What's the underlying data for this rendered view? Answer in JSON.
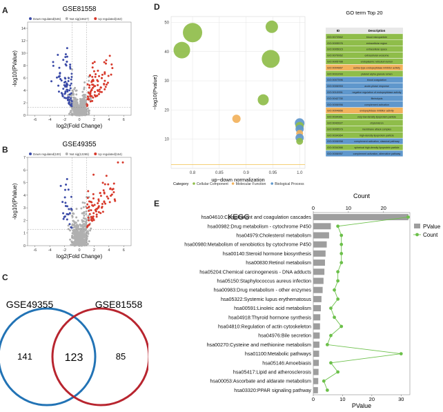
{
  "panel_letters": {
    "a": "A",
    "b": "B",
    "c": "C",
    "d": "D",
    "e": "E"
  },
  "chart_data": [
    {
      "panel": "A",
      "type": "scatter",
      "title": "GSE81558",
      "xlabel": "log2(Fold Change)",
      "ylabel": "-log10(PValue)",
      "xlim": [
        -7,
        7
      ],
      "ylim": [
        0,
        15
      ],
      "xticks": [
        -6,
        -4,
        -2,
        0,
        2,
        4,
        6
      ],
      "yticks": [
        0,
        2,
        4,
        6,
        8,
        10,
        12,
        14
      ],
      "legend": [
        {
          "label": "Down regulated(646)",
          "color": "#3b4ba8"
        },
        {
          "label": "Not sig(18627)",
          "color": "#b0b0b0"
        },
        {
          "label": "Up regulated(162)",
          "color": "#d7392b"
        }
      ],
      "thresholds": {
        "x": [
          -1,
          1
        ],
        "y": 1.3
      },
      "counts": {
        "down": 646,
        "notsig": 18627,
        "up": 162
      },
      "shape": {
        "x_spread": 3.2,
        "y_max": 13.5,
        "highlight_y_scale": 0.9
      }
    },
    {
      "panel": "B",
      "type": "scatter",
      "title": "GSE49355",
      "xlabel": "log2(Fold Change)",
      "ylabel": "-log10(PValue)",
      "xlim": [
        -7,
        7
      ],
      "ylim": [
        0,
        7
      ],
      "xticks": [
        -6,
        -4,
        -2,
        0,
        2,
        4,
        6
      ],
      "yticks": [
        0,
        1,
        2,
        3,
        4,
        5,
        6,
        7
      ],
      "legend": [
        {
          "label": "Down regulated(100)",
          "color": "#3b4ba8"
        },
        {
          "label": "Not sig(12265)",
          "color": "#b0b0b0"
        },
        {
          "label": "Up regulated(164)",
          "color": "#d7392b"
        }
      ],
      "thresholds": {
        "x": [
          -1,
          1
        ],
        "y": 1.3
      },
      "counts": {
        "down": 100,
        "notsig": 12265,
        "up": 164
      },
      "shape": {
        "x_spread": 4.5,
        "y_max": 6.6,
        "highlight_y_scale": 0.45
      }
    },
    {
      "panel": "C",
      "type": "venn",
      "sets": [
        {
          "name": "GSE49355",
          "only": 141,
          "color": "#2273b5"
        },
        {
          "name": "GSE81558",
          "only": 85,
          "color": "#b8252f"
        }
      ],
      "intersection": 123
    },
    {
      "panel": "D",
      "type": "bubble",
      "xlabel": "up−down normalization",
      "ylabel": "−log10(Pvalue)",
      "xlim": [
        0.76,
        1.01
      ],
      "ylim": [
        0,
        52
      ],
      "xticks": [
        0.8,
        0.85,
        0.9,
        0.95,
        1.0
      ],
      "yticks": [
        10,
        20,
        30,
        40,
        50
      ],
      "threshold_y": 1.3,
      "legend_title": "Category",
      "categories": [
        {
          "name": "Cellular Component",
          "color": "#8fbd4a"
        },
        {
          "name": "Molecular Function",
          "color": "#f2b25c"
        },
        {
          "name": "Biological Process",
          "color": "#5f97cc"
        }
      ],
      "points": [
        {
          "x": 0.8,
          "y": 46.5,
          "size": 14,
          "category": "Cellular Component"
        },
        {
          "x": 0.78,
          "y": 40.5,
          "size": 12,
          "category": "Cellular Component"
        },
        {
          "x": 0.948,
          "y": 48.5,
          "size": 9,
          "category": "Cellular Component"
        },
        {
          "x": 0.946,
          "y": 37.5,
          "size": 13,
          "category": "Cellular Component"
        },
        {
          "x": 0.932,
          "y": 23.5,
          "size": 8,
          "category": "Cellular Component"
        },
        {
          "x": 0.882,
          "y": 17,
          "size": 6,
          "category": "Molecular Function"
        },
        {
          "x": 1.0,
          "y": 15.5,
          "size": 7,
          "category": "Biological Process"
        },
        {
          "x": 1.0,
          "y": 14.5,
          "size": 6,
          "category": "Cellular Component"
        },
        {
          "x": 1.0,
          "y": 13.5,
          "size": 6,
          "category": "Biological Process"
        },
        {
          "x": 1.0,
          "y": 12.0,
          "size": 5,
          "category": "Molecular Function"
        },
        {
          "x": 1.0,
          "y": 10.5,
          "size": 6,
          "category": "Biological Process"
        },
        {
          "x": 1.0,
          "y": 9.3,
          "size": 5,
          "category": "Cellular Component"
        }
      ]
    },
    {
      "panel": "D",
      "type": "table",
      "title": "GO term Top 20",
      "columns": [
        "ID",
        "Description"
      ],
      "rows": [
        {
          "id": "GO:0072562",
          "desc": "blood microparticle",
          "category": "Cellular Component"
        },
        {
          "id": "GO:0005576",
          "desc": "extracellular region",
          "category": "Cellular Component"
        },
        {
          "id": "GO:0005615",
          "desc": "extracellular space",
          "category": "Cellular Component"
        },
        {
          "id": "GO:0070062",
          "desc": "extracellular exosome",
          "category": "Cellular Component"
        },
        {
          "id": "GO:0005788",
          "desc": "endoplasmic reticulum lumen",
          "category": "Cellular Component"
        },
        {
          "id": "GO:0004867",
          "desc": "serine-type endopeptidase inhibitor activity",
          "category": "Molecular Function"
        },
        {
          "id": "GO:0031093",
          "desc": "platelet alpha granule lumen",
          "category": "Cellular Component"
        },
        {
          "id": "GO:0007596",
          "desc": "blood coagulation",
          "category": "Biological Process"
        },
        {
          "id": "GO:0006953",
          "desc": "acute-phase response",
          "category": "Biological Process"
        },
        {
          "id": "GO:0010951",
          "desc": "negative regulation of endopeptidase activity",
          "category": "Biological Process"
        },
        {
          "id": "GO:0042730",
          "desc": "fibrinolysis",
          "category": "Biological Process"
        },
        {
          "id": "GO:0006956",
          "desc": "complement activation",
          "category": "Biological Process"
        },
        {
          "id": "GO:0004866",
          "desc": "endopeptidase inhibitor activity",
          "category": "Molecular Function"
        },
        {
          "id": "GO:0034361",
          "desc": "very-low-density lipoprotein particle",
          "category": "Cellular Component"
        },
        {
          "id": "GO:0042627",
          "desc": "chylomicron",
          "category": "Cellular Component"
        },
        {
          "id": "GO:0005579",
          "desc": "membrane attack complex",
          "category": "Cellular Component"
        },
        {
          "id": "GO:0034364",
          "desc": "high-density lipoprotein particle",
          "category": "Cellular Component"
        },
        {
          "id": "GO:0006958",
          "desc": "complement activation, classical pathway",
          "category": "Biological Process"
        },
        {
          "id": "GO:0034366",
          "desc": "spherical high-density lipoprotein particle",
          "category": "Cellular Component"
        },
        {
          "id": "GO:0006957",
          "desc": "complement activation, alternative pathway",
          "category": "Biological Process"
        }
      ]
    },
    {
      "panel": "E",
      "type": "bar+line",
      "title": "KEGG",
      "xlabel_bottom": "PValue",
      "xlabel_top": "Count",
      "pvalue_ticks": [
        0,
        10,
        20,
        30
      ],
      "pvalue_lim": [
        0,
        33
      ],
      "count_ticks": [
        0,
        10,
        20
      ],
      "count_lim": [
        0,
        27.5
      ],
      "legend": [
        {
          "label": "PValue",
          "color": "#9e9e9e"
        },
        {
          "label": "Count",
          "color": "#6cc04a"
        }
      ],
      "categories": [
        "hsa04610:Complement and coagulation cascades",
        "hsa00982:Drug metabolism - cytochrome P450",
        "hsa04979:Cholesterol metabolism",
        "hsa00980:Metabolism of xenobiotics by cytochrome P450",
        "hsa00140:Steroid hormone biosynthesis",
        "hsa00830:Retinol metabolism",
        "hsa05204:Chemical carcinogenesis - DNA adducts",
        "hsa05150:Staphylococcus aureus infection",
        "hsa00983:Drug metabolism - other enzymes",
        "hsa05322:Systemic lupus erythematosus",
        "hsa00591:Linoleic acid metabolism",
        "hsa04918:Thyroid hormone synthesis",
        "hsa04810:Regulation of actin cytoskeleton",
        "hsa04976:Bile secretion",
        "hsa00270:Cysteine and methionine metabolism",
        "hsa01100:Metabolic pathways",
        "hsa05146:Amoebiasis",
        "hsa05417:Lipid and atherosclerosis",
        "hsa00053:Ascorbate and aldarate metabolism",
        "hsa03320:PPAR signaling pathway"
      ],
      "pvalue": [
        32.5,
        6.0,
        5.4,
        4.6,
        4.2,
        4.0,
        3.8,
        3.5,
        3.2,
        2.8,
        2.6,
        2.4,
        2.3,
        2.2,
        2.1,
        2.0,
        1.9,
        1.8,
        1.7,
        1.6
      ],
      "count": [
        27,
        7,
        8,
        8,
        8,
        8,
        7,
        7,
        6,
        7,
        5,
        6,
        8,
        5,
        4,
        25,
        5,
        7,
        3,
        4
      ]
    }
  ]
}
